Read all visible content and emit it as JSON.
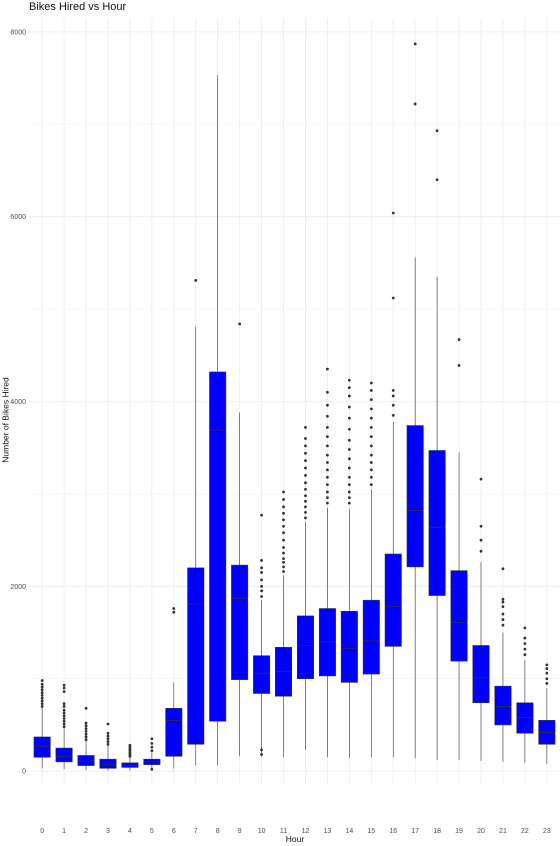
{
  "chart_data": {
    "type": "boxplot",
    "title": "Bikes Hired vs Hour",
    "xlabel": "Hour",
    "ylabel": "Number of Bikes Hired",
    "ylim": [
      -150,
      8150
    ],
    "yticks": [
      0,
      2000,
      4000,
      6000,
      8000
    ],
    "grid": true,
    "legend": "none",
    "colors": {
      "box_fill": "#0000ff",
      "box_stroke": "#333333",
      "median": "#333333",
      "outlier": "#333333",
      "grid": "#ebebeb"
    },
    "categories": [
      "0",
      "1",
      "2",
      "3",
      "4",
      "5",
      "6",
      "7",
      "8",
      "9",
      "10",
      "11",
      "12",
      "13",
      "14",
      "15",
      "16",
      "17",
      "18",
      "19",
      "20",
      "21",
      "22",
      "23"
    ],
    "boxes": [
      {
        "hour": "0",
        "min": 30,
        "q1": 150,
        "median": 270,
        "q3": 370,
        "max": 680,
        "outliers": [
          700,
          730,
          760,
          790,
          820,
          850,
          880,
          910,
          940,
          980
        ]
      },
      {
        "hour": "1",
        "min": 20,
        "q1": 100,
        "median": 160,
        "q3": 250,
        "max": 460,
        "outliers": [
          480,
          510,
          540,
          570,
          600,
          630,
          660,
          700,
          730,
          860,
          900,
          930
        ]
      },
      {
        "hour": "2",
        "min": 10,
        "q1": 60,
        "median": 110,
        "q3": 170,
        "max": 320,
        "outliers": [
          340,
          370,
          400,
          430,
          460,
          490,
          520,
          680
        ]
      },
      {
        "hour": "3",
        "min": 5,
        "q1": 30,
        "median": 70,
        "q3": 130,
        "max": 270,
        "outliers": [
          290,
          320,
          350,
          380,
          410,
          510
        ]
      },
      {
        "hour": "4",
        "min": 5,
        "q1": 40,
        "median": 60,
        "q3": 90,
        "max": 150,
        "outliers": [
          160,
          180,
          200,
          220,
          240,
          260,
          280
        ]
      },
      {
        "hour": "5",
        "min": 20,
        "q1": 70,
        "median": 100,
        "q3": 130,
        "max": 200,
        "outliers": [
          20,
          220,
          260,
          300,
          350
        ]
      },
      {
        "hour": "6",
        "min": 30,
        "q1": 160,
        "median": 550,
        "q3": 680,
        "max": 960,
        "outliers": [
          1720,
          1760
        ]
      },
      {
        "hour": "7",
        "min": 60,
        "q1": 290,
        "median": 1810,
        "q3": 2200,
        "max": 4810,
        "outliers": [
          5310
        ]
      },
      {
        "hour": "8",
        "min": 60,
        "q1": 540,
        "median": 3690,
        "q3": 4320,
        "max": 7530,
        "outliers": []
      },
      {
        "hour": "9",
        "min": 160,
        "q1": 990,
        "median": 1870,
        "q3": 2230,
        "max": 3880,
        "outliers": [
          4840
        ]
      },
      {
        "hour": "10",
        "min": 160,
        "q1": 840,
        "median": 1060,
        "q3": 1250,
        "max": 1850,
        "outliers": [
          180,
          230,
          1890,
          1950,
          2000,
          2070,
          2150,
          2200,
          2280,
          2770
        ]
      },
      {
        "hour": "11",
        "min": 150,
        "q1": 810,
        "median": 1080,
        "q3": 1340,
        "max": 2120,
        "outliers": [
          2160,
          2210,
          2260,
          2300,
          2360,
          2420,
          2500,
          2580,
          2650,
          2720,
          2790,
          2860,
          2940,
          3020
        ]
      },
      {
        "hour": "12",
        "min": 230,
        "q1": 1000,
        "median": 1360,
        "q3": 1680,
        "max": 2700,
        "outliers": [
          2740,
          2800,
          2860,
          2920,
          2980,
          3050,
          3120,
          3200,
          3280,
          3360,
          3440,
          3520,
          3600,
          3720
        ]
      },
      {
        "hour": "13",
        "min": 150,
        "q1": 1030,
        "median": 1400,
        "q3": 1760,
        "max": 2850,
        "outliers": [
          2900,
          2960,
          3020,
          3100,
          3180,
          3260,
          3340,
          3420,
          3520,
          3620,
          3720,
          3840,
          3960,
          4100,
          4350
        ]
      },
      {
        "hour": "14",
        "min": 140,
        "q1": 960,
        "median": 1330,
        "q3": 1730,
        "max": 2840,
        "outliers": [
          2900,
          2960,
          3020,
          3100,
          3180,
          3280,
          3380,
          3480,
          3580,
          3700,
          3820,
          3940,
          4060,
          4150,
          4230
        ]
      },
      {
        "hour": "15",
        "min": 150,
        "q1": 1050,
        "median": 1410,
        "q3": 1850,
        "max": 3050,
        "outliers": [
          3100,
          3180,
          3260,
          3340,
          3420,
          3520,
          3620,
          3720,
          3820,
          3920,
          4020,
          4120,
          4200
        ]
      },
      {
        "hour": "16",
        "min": 150,
        "q1": 1350,
        "median": 1780,
        "q3": 2350,
        "max": 3780,
        "outliers": [
          3850,
          3960,
          4060,
          4120,
          5120,
          6040
        ]
      },
      {
        "hour": "17",
        "min": 140,
        "q1": 2210,
        "median": 2820,
        "q3": 3740,
        "max": 5560,
        "outliers": [
          7220,
          7870
        ]
      },
      {
        "hour": "18",
        "min": 120,
        "q1": 1900,
        "median": 2640,
        "q3": 3470,
        "max": 5350,
        "outliers": [
          6400,
          6930
        ]
      },
      {
        "hour": "19",
        "min": 120,
        "q1": 1190,
        "median": 1610,
        "q3": 2170,
        "max": 3450,
        "outliers": [
          4390,
          4670
        ]
      },
      {
        "hour": "20",
        "min": 110,
        "q1": 740,
        "median": 1010,
        "q3": 1360,
        "max": 2260,
        "outliers": [
          2380,
          2500,
          2650,
          3160
        ]
      },
      {
        "hour": "21",
        "min": 100,
        "q1": 500,
        "median": 700,
        "q3": 920,
        "max": 1500,
        "outliers": [
          1580,
          1640,
          1700,
          1780,
          1830,
          1860,
          2190
        ]
      },
      {
        "hour": "22",
        "min": 90,
        "q1": 410,
        "median": 580,
        "q3": 740,
        "max": 1200,
        "outliers": [
          1260,
          1320,
          1380,
          1440,
          1550
        ]
      },
      {
        "hour": "23",
        "min": 80,
        "q1": 290,
        "median": 420,
        "q3": 550,
        "max": 900,
        "outliers": [
          950,
          1000,
          1060,
          1110,
          1150
        ]
      }
    ]
  }
}
